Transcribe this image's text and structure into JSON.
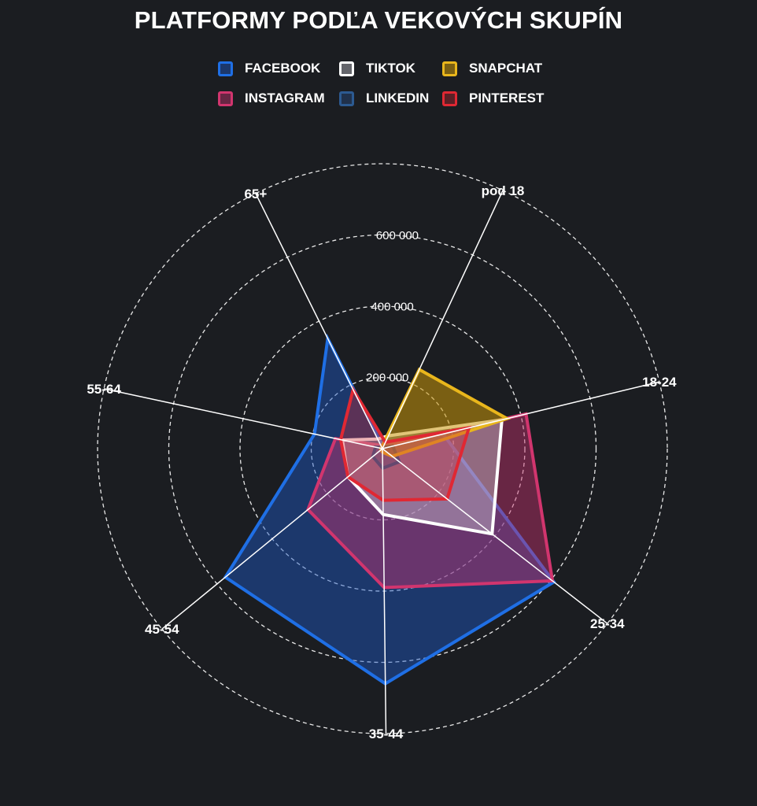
{
  "chart_data": {
    "type": "radar",
    "title": "PLATFORMY PODĽA VEKOVÝCH SKUPÍN",
    "categories": [
      "pod 18",
      "18-24",
      "25-34",
      "35-44",
      "45-54",
      "55-64",
      "65+"
    ],
    "rlim": [
      0,
      800000
    ],
    "ticks": [
      {
        "value": 200000,
        "label": "200 000"
      },
      {
        "value": 400000,
        "label": "400 000"
      },
      {
        "value": 600000,
        "label": "600 000"
      },
      {
        "value": 800000,
        "label": ""
      }
    ],
    "grid": true,
    "legend_position": "top-center",
    "series": [
      {
        "name": "FACEBOOK",
        "color": "#1f6fe5",
        "fill": "rgba(31,90,200,0.45)",
        "values": [
          5000,
          175000,
          610000,
          660000,
          570000,
          195000,
          345000
        ]
      },
      {
        "name": "INSTAGRAM",
        "color": "#d1356e",
        "fill": "rgba(200,50,110,0.45)",
        "values": [
          8000,
          415000,
          605000,
          390000,
          270000,
          135000,
          10000
        ]
      },
      {
        "name": "TIKTOK",
        "color": "#ffffff",
        "fill": "rgba(210,210,220,0.40)",
        "values": [
          40000,
          345000,
          390000,
          185000,
          125000,
          115000,
          30000
        ]
      },
      {
        "name": "LINKEDIN",
        "color": "#2c5a91",
        "fill": "rgba(40,80,140,0.40)",
        "values": [
          5000,
          30000,
          60000,
          55000,
          35000,
          20000,
          5000
        ]
      },
      {
        "name": "SNAPCHAT",
        "color": "#e9b61c",
        "fill": "rgba(200,150,10,0.55)",
        "values": [
          245000,
          360000,
          35000,
          10000,
          5000,
          5000,
          5000
        ]
      },
      {
        "name": "PINTEREST",
        "color": "#e02833",
        "fill": "rgba(210,40,50,0.35)",
        "values": [
          20000,
          250000,
          230000,
          145000,
          125000,
          120000,
          185000
        ]
      }
    ]
  }
}
